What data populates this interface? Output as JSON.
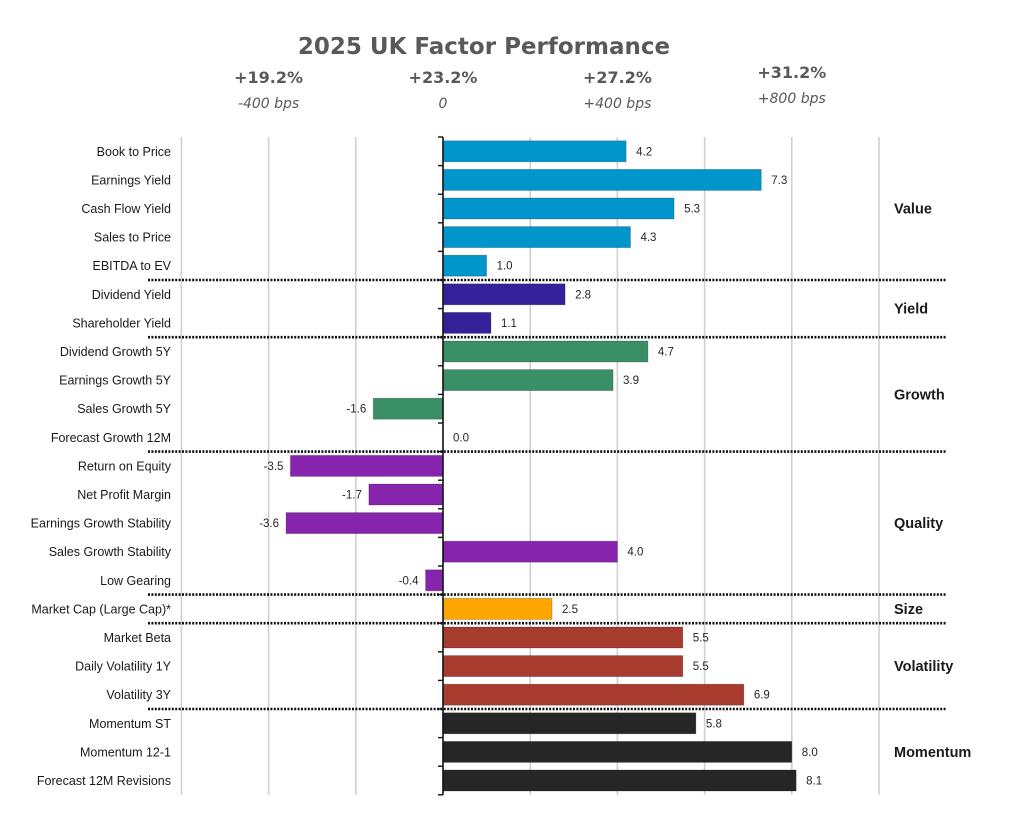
{
  "chart_data": {
    "type": "bar",
    "orientation": "horizontal",
    "title": "2025 UK Factor Performance",
    "xlim": [
      -6,
      10
    ],
    "grid_step": 2,
    "grid": true,
    "top_axis_labels": [
      {
        "value": -4,
        "pct": "+19.2%",
        "bps": "-400 bps"
      },
      {
        "value": 0,
        "pct": "+23.2%",
        "bps": "0"
      },
      {
        "value": 4,
        "pct": "+27.2%",
        "bps": "+400 bps"
      },
      {
        "value": 8,
        "pct": "+31.2%",
        "bps": "+800 bps"
      }
    ],
    "groups": [
      {
        "name": "Value",
        "color": "#0096CC",
        "items": [
          {
            "label": "Book to Price",
            "value": 4.2,
            "text": "4.2"
          },
          {
            "label": "Earnings Yield",
            "value": 7.3,
            "text": "7.3"
          },
          {
            "label": "Cash Flow Yield",
            "value": 5.3,
            "text": "5.3"
          },
          {
            "label": "Sales to Price",
            "value": 4.3,
            "text": "4.3"
          },
          {
            "label": "EBITDA to EV",
            "value": 1.0,
            "text": "1.0"
          }
        ]
      },
      {
        "name": "Yield",
        "color": "#35219A",
        "items": [
          {
            "label": "Dividend Yield",
            "value": 2.8,
            "text": "2.8"
          },
          {
            "label": "Shareholder Yield",
            "value": 1.1,
            "text": "1.1"
          }
        ]
      },
      {
        "name": "Growth",
        "color": "#3A8F66",
        "items": [
          {
            "label": "Dividend Growth 5Y",
            "value": 4.7,
            "text": "4.7"
          },
          {
            "label": "Earnings Growth 5Y",
            "value": 3.9,
            "text": "3.9"
          },
          {
            "label": "Sales Growth 5Y",
            "value": -1.6,
            "text": "-1.6"
          },
          {
            "label": "Forecast Growth 12M",
            "value": 0.0,
            "text": "0.0"
          }
        ]
      },
      {
        "name": "Quality",
        "color": "#8624AE",
        "items": [
          {
            "label": "Return on Equity",
            "value": -3.5,
            "text": "-3.5"
          },
          {
            "label": "Net Profit Margin",
            "value": -1.7,
            "text": "-1.7"
          },
          {
            "label": "Earnings Growth Stability",
            "value": -3.6,
            "text": "-3.6"
          },
          {
            "label": "Sales Growth Stability",
            "value": 4.0,
            "text": "4.0"
          },
          {
            "label": "Low Gearing",
            "value": -0.4,
            "text": "-0.4"
          }
        ]
      },
      {
        "name": "Size",
        "color": "#FFA500",
        "items": [
          {
            "label": "Market Cap (Large Cap)*",
            "value": 2.5,
            "text": "2.5"
          }
        ]
      },
      {
        "name": "Volatility",
        "color": "#A63B2E",
        "items": [
          {
            "label": "Market Beta",
            "value": 5.5,
            "text": "5.5"
          },
          {
            "label": "Daily Volatility 1Y",
            "value": 5.5,
            "text": "5.5"
          },
          {
            "label": "Volatility 3Y",
            "value": 6.9,
            "text": "6.9"
          }
        ]
      },
      {
        "name": "Momentum",
        "color": "#262626",
        "items": [
          {
            "label": "Momentum ST",
            "value": 5.8,
            "text": "5.8"
          },
          {
            "label": "Momentum 12-1",
            "value": 8.0,
            "text": "8.0"
          },
          {
            "label": "Forecast 12M Revisions",
            "value": 8.1,
            "text": "8.1"
          }
        ]
      }
    ]
  }
}
